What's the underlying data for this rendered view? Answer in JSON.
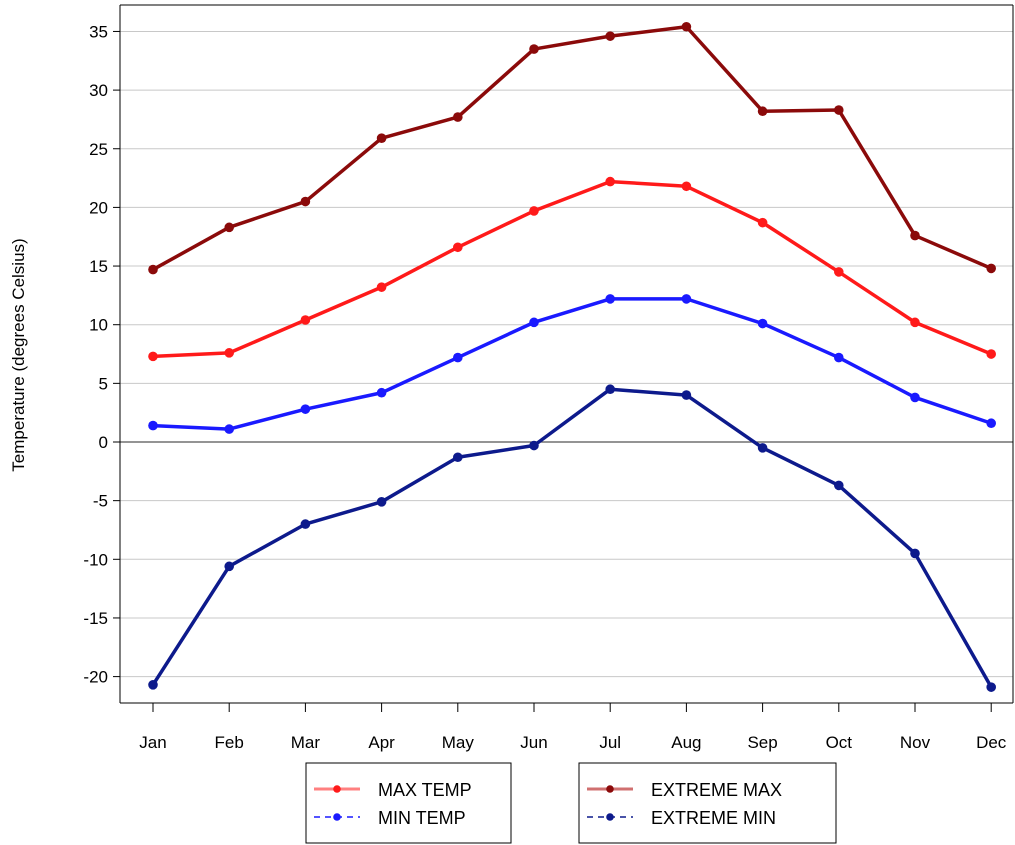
{
  "chart_data": {
    "type": "line",
    "title": "",
    "xlabel": "",
    "ylabel": "Temperature (degrees Celsius)",
    "categories": [
      "Jan",
      "Feb",
      "Mar",
      "Apr",
      "May",
      "Jun",
      "Jul",
      "Aug",
      "Sep",
      "Oct",
      "Nov",
      "Dec"
    ],
    "ylim": [
      -22,
      37
    ],
    "yticks": [
      -20,
      -15,
      -10,
      -5,
      0,
      5,
      10,
      15,
      20,
      25,
      30,
      35
    ],
    "grid": true,
    "series": [
      {
        "name": "MAX TEMP",
        "color": "#ff1a1a",
        "values": [
          7.3,
          7.6,
          10.4,
          13.2,
          16.6,
          19.7,
          22.2,
          21.8,
          18.7,
          14.5,
          10.2,
          7.5
        ]
      },
      {
        "name": "MIN TEMP",
        "color": "#1a1aff",
        "values": [
          1.4,
          1.1,
          2.8,
          4.2,
          7.2,
          10.2,
          12.2,
          12.2,
          10.1,
          7.2,
          3.8,
          1.6
        ]
      },
      {
        "name": "EXTREME MAX",
        "color": "#8b0a0a",
        "values": [
          14.7,
          18.3,
          20.5,
          25.9,
          27.7,
          33.5,
          34.6,
          35.4,
          28.2,
          28.3,
          17.6,
          14.8
        ]
      },
      {
        "name": "EXTREME MIN",
        "color": "#0d1a8c",
        "values": [
          -20.7,
          -10.6,
          -7.0,
          -5.1,
          -1.3,
          -0.3,
          4.5,
          4.0,
          -0.5,
          -3.7,
          -9.5,
          -20.9
        ]
      }
    ],
    "legend_position": "bottom"
  }
}
